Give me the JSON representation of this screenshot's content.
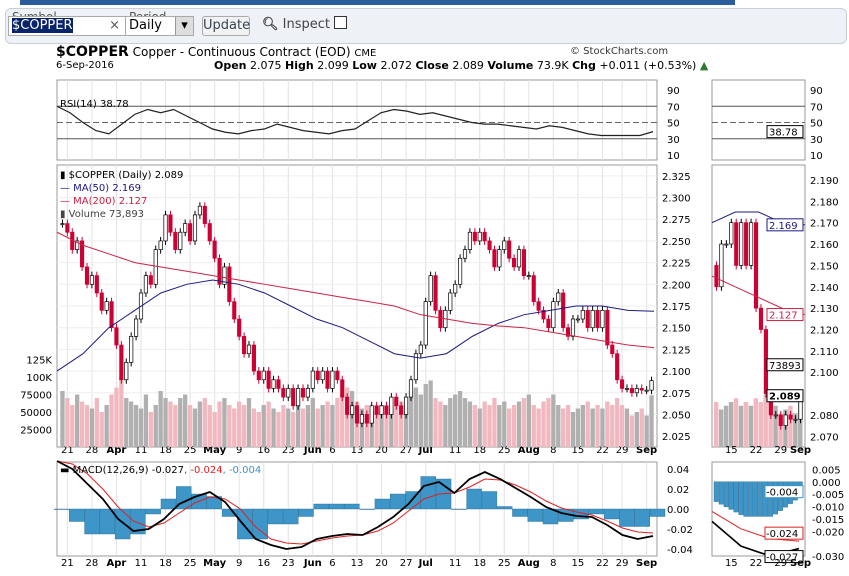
{
  "toolbar": {
    "symbol_label": "Symbol",
    "symbol_value": "$COPPER",
    "clear": "×",
    "period_label": "Period",
    "period_value": "Daily",
    "dropdown": "▾",
    "update": "Update",
    "inspect": "Inspect"
  },
  "header": {
    "symbol": "$COPPER",
    "name": "Copper - Continuous Contract (EOD)",
    "exchange": "CME",
    "date": "6-Sep-2016",
    "copyright": "© StockCharts.com",
    "open_l": "Open",
    "open": "2.075",
    "high_l": "High",
    "high": "2.099",
    "low_l": "Low",
    "low": "2.072",
    "close_l": "Close",
    "close": "2.089",
    "vol_l": "Volume",
    "vol": "73.9K",
    "chg_l": "Chg",
    "chg": "+0.011 (+0.53%)"
  },
  "colors": {
    "up": "#ffffff",
    "down": "#cc0033",
    "ma50": "#1a1a80",
    "ma200": "#cc2244",
    "vol_up": "#b0b0b0",
    "vol_down": "#f2b8c0",
    "macd": "#000000",
    "signal": "#dd2222",
    "hist": "#3d95c8"
  },
  "chart_data": {
    "type": "candlestick",
    "x_ticks": [
      "21",
      "28",
      "Apr",
      "11",
      "18",
      "25",
      "May",
      "9",
      "16",
      "23",
      "Jun",
      "6",
      "13",
      "20",
      "27",
      "Jul",
      "11",
      "18",
      "25",
      "Aug",
      "8",
      "15",
      "22",
      "29",
      "Sep"
    ],
    "zoom_x_ticks": [
      "15",
      "22",
      "29",
      "Sep"
    ],
    "rsi": {
      "label": "RSI(14) 38.78",
      "last": "38.78",
      "ticks": [
        "90",
        "70",
        "50",
        "30",
        "10"
      ],
      "values": [
        70,
        62,
        50,
        40,
        36,
        48,
        60,
        66,
        62,
        66,
        58,
        50,
        42,
        38,
        36,
        40,
        42,
        48,
        44,
        40,
        38,
        36,
        40,
        42,
        52,
        62,
        66,
        64,
        60,
        62,
        58,
        54,
        50,
        48,
        48,
        46,
        44,
        42,
        46,
        44,
        40,
        36,
        34,
        34,
        34,
        34,
        38.78
      ]
    },
    "price": {
      "label": "$COPPER (Daily) 2.089",
      "ylim": [
        2.0,
        2.325
      ],
      "ticks": [
        "2.325",
        "2.300",
        "2.275",
        "2.250",
        "2.225",
        "2.200",
        "2.175",
        "2.150",
        "2.125",
        "2.100",
        "2.075",
        "2.050",
        "2.025"
      ],
      "closes": [
        2.27,
        2.26,
        2.24,
        2.25,
        2.22,
        2.2,
        2.21,
        2.19,
        2.17,
        2.18,
        2.15,
        2.13,
        2.09,
        2.11,
        2.14,
        2.16,
        2.19,
        2.21,
        2.2,
        2.24,
        2.25,
        2.28,
        2.26,
        2.24,
        2.26,
        2.27,
        2.25,
        2.28,
        2.29,
        2.27,
        2.25,
        2.23,
        2.2,
        2.22,
        2.18,
        2.16,
        2.14,
        2.12,
        2.13,
        2.1,
        2.09,
        2.1,
        2.08,
        2.09,
        2.08,
        2.07,
        2.08,
        2.06,
        2.08,
        2.07,
        2.08,
        2.1,
        2.09,
        2.1,
        2.08,
        2.1,
        2.09,
        2.07,
        2.05,
        2.06,
        2.04,
        2.05,
        2.04,
        2.06,
        2.05,
        2.06,
        2.05,
        2.07,
        2.06,
        2.05,
        2.07,
        2.09,
        2.12,
        2.13,
        2.18,
        2.21,
        2.17,
        2.15,
        2.17,
        2.19,
        2.2,
        2.23,
        2.24,
        2.26,
        2.25,
        2.26,
        2.25,
        2.24,
        2.22,
        2.24,
        2.25,
        2.23,
        2.22,
        2.24,
        2.21,
        2.21,
        2.18,
        2.17,
        2.16,
        2.15,
        2.18,
        2.19,
        2.15,
        2.14,
        2.16,
        2.16,
        2.17,
        2.15,
        2.17,
        2.15,
        2.17,
        2.13,
        2.12,
        2.09,
        2.08,
        2.08,
        2.075,
        2.08,
        2.078,
        2.078,
        2.089
      ],
      "ma50": {
        "label": "MA(50) 2.169",
        "last": "2.169",
        "values": [
          2.1,
          2.12,
          2.15,
          2.17,
          2.19,
          2.2,
          2.205,
          2.2,
          2.19,
          2.175,
          2.16,
          2.15,
          2.135,
          2.12,
          2.115,
          2.12,
          2.14,
          2.155,
          2.165,
          2.17,
          2.175,
          2.175,
          2.17,
          2.169
        ]
      },
      "ma200": {
        "label": "MA(200) 2.127",
        "last": "2.127",
        "values": [
          2.26,
          2.245,
          2.235,
          2.225,
          2.22,
          2.215,
          2.21,
          2.205,
          2.2,
          2.195,
          2.19,
          2.185,
          2.18,
          2.175,
          2.165,
          2.16,
          2.155,
          2.152,
          2.15,
          2.145,
          2.14,
          2.135,
          2.13,
          2.127
        ]
      }
    },
    "volume": {
      "label": "Volume 73,893",
      "last": "73893",
      "ticks": [
        "125K",
        "100K",
        "75000",
        "50000",
        "25000"
      ],
      "values": [
        80,
        70,
        60,
        75,
        65,
        60,
        55,
        70,
        50,
        60,
        75,
        85,
        100,
        70,
        65,
        60,
        55,
        75,
        50,
        60,
        80,
        70,
        65,
        60,
        70,
        75,
        60,
        55,
        65,
        70,
        60,
        50,
        65,
        70,
        60,
        55,
        65,
        60,
        70,
        55,
        50,
        60,
        65,
        55,
        50,
        60,
        55,
        50,
        65,
        55,
        60,
        70,
        55,
        60,
        65,
        60,
        70,
        75,
        85,
        80,
        65,
        55,
        60,
        50,
        55,
        60,
        50,
        55,
        60,
        65,
        70,
        80,
        85,
        75,
        90,
        95,
        70,
        65,
        60,
        70,
        75,
        80,
        70,
        65,
        60,
        55,
        65,
        60,
        70,
        60,
        65,
        55,
        60,
        65,
        70,
        75,
        60,
        55,
        65,
        70,
        75,
        60,
        55,
        60,
        50,
        55,
        60,
        65,
        55,
        60,
        55,
        65,
        60,
        70,
        60,
        55,
        45,
        50,
        55,
        45,
        73.9
      ]
    },
    "macd": {
      "label": "MACD(12,26,9) -0.027",
      "signal_label": ", -0.024",
      "hist_label": ", -0.004",
      "ticks": [
        "0.04",
        "0.02",
        "0.00",
        "-0.02",
        "-0.04"
      ],
      "ylim": [
        -0.047,
        0.047
      ],
      "macd": [
        0.048,
        0.04,
        0.025,
        0.01,
        -0.01,
        -0.022,
        -0.02,
        -0.01,
        0.005,
        0.012,
        0.017,
        0.007,
        -0.012,
        -0.03,
        -0.036,
        -0.04,
        -0.038,
        -0.03,
        -0.027,
        -0.025,
        -0.026,
        -0.018,
        -0.008,
        0.005,
        0.023,
        0.027,
        0.016,
        0.03,
        0.037,
        0.03,
        0.021,
        0.012,
        0.002,
        -0.004,
        -0.007,
        -0.008,
        -0.016,
        -0.026,
        -0.03,
        -0.027
      ],
      "signal": [
        0.048,
        0.045,
        0.035,
        0.02,
        0.002,
        -0.012,
        -0.018,
        -0.014,
        -0.004,
        0.006,
        0.012,
        0.01,
        0.0,
        -0.018,
        -0.03,
        -0.034,
        -0.035,
        -0.032,
        -0.029,
        -0.027,
        -0.026,
        -0.022,
        -0.014,
        -0.002,
        0.01,
        0.015,
        0.016,
        0.022,
        0.03,
        0.029,
        0.024,
        0.017,
        0.008,
        0.001,
        -0.003,
        -0.006,
        -0.012,
        -0.019,
        -0.023,
        -0.024
      ]
    },
    "zoom": {
      "price_ticks": [
        "2.190",
        "2.180",
        "2.170",
        "2.160",
        "2.150",
        "2.140",
        "2.130",
        "2.120",
        "2.110",
        "2.100",
        "2.080",
        "2.070"
      ],
      "ylim": [
        2.065,
        2.197
      ],
      "macd_ticks": [
        "0.005",
        "0.000",
        "-0.005",
        "-0.010",
        "-0.015",
        "-0.020",
        "-0.030"
      ],
      "close_label": "2.089"
    }
  }
}
